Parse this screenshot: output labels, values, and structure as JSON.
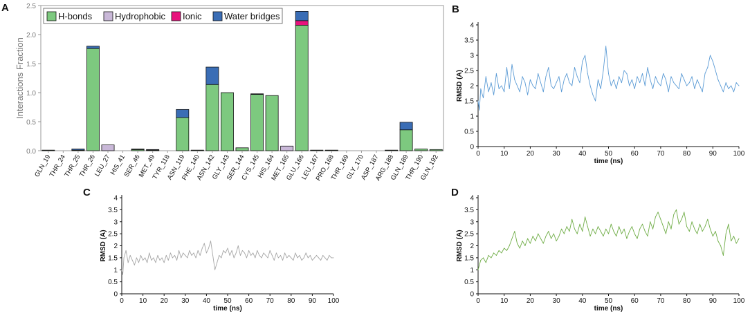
{
  "panels": {
    "A": {
      "letter": "A"
    },
    "B": {
      "letter": "B"
    },
    "C": {
      "letter": "C"
    },
    "D": {
      "letter": "D"
    }
  },
  "colors": {
    "hbonds": "#7dc97f",
    "hydrophobic": "#c9b8d8",
    "ionic": "#e8127d",
    "water": "#3a6db5",
    "rmsd_b": "#5b9bd5",
    "rmsd_c": "#a6a6a6",
    "rmsd_d": "#70ad47"
  },
  "chart_data": [
    {
      "panel": "A",
      "type": "bar",
      "stacked": true,
      "title": "",
      "xlabel": "",
      "ylabel": "Interactions Fraction",
      "ylim": [
        0,
        2.5
      ],
      "yticks": [
        "0.0",
        "0.5",
        "1.0",
        "1.5",
        "2.0",
        "2.5"
      ],
      "yticks_values": [
        0,
        0.5,
        1.0,
        1.5,
        2.0,
        2.5
      ],
      "legend_position": "top-left",
      "categories": [
        "GLN_19",
        "THR_24",
        "THR_25",
        "THR_26",
        "LEU_27",
        "HIS_41",
        "SER_46",
        "MET_49",
        "TYR_118",
        "ASN_119",
        "PHE_140",
        "ASN_142",
        "GLY_143",
        "SER_144",
        "CYS_145",
        "HIS_164",
        "MET_165",
        "GLU_166",
        "LEU_167",
        "PRO_168",
        "THR_169",
        "GLY_170",
        "ASP_187",
        "ARG_188",
        "GLN_189",
        "THR_190",
        "GLN_192"
      ],
      "series": [
        {
          "name": "H-bonds",
          "key": "hbonds",
          "values": [
            0.01,
            0.0,
            0.01,
            1.76,
            0.0,
            0.0,
            0.02,
            0.01,
            0.0,
            0.57,
            0.01,
            1.14,
            1.0,
            0.05,
            0.97,
            0.95,
            0.0,
            2.16,
            0.01,
            0.01,
            0.0,
            0.0,
            0.0,
            0.01,
            0.36,
            0.03,
            0.02
          ]
        },
        {
          "name": "Hydrophobic",
          "key": "hydrophobic",
          "values": [
            0.0,
            0.0,
            0.0,
            0.0,
            0.1,
            0.0,
            0.0,
            0.0,
            0.0,
            0.0,
            0.0,
            0.0,
            0.0,
            0.0,
            0.0,
            0.0,
            0.08,
            0.0,
            0.0,
            0.0,
            0.0,
            0.0,
            0.0,
            0.0,
            0.0,
            0.0,
            0.0
          ]
        },
        {
          "name": "Ionic",
          "key": "ionic",
          "values": [
            0.0,
            0.0,
            0.0,
            0.0,
            0.0,
            0.0,
            0.0,
            0.0,
            0.0,
            0.0,
            0.0,
            0.0,
            0.0,
            0.0,
            0.0,
            0.0,
            0.0,
            0.08,
            0.0,
            0.0,
            0.0,
            0.0,
            0.0,
            0.0,
            0.0,
            0.0,
            0.0
          ]
        },
        {
          "name": "Water bridges",
          "key": "water",
          "values": [
            0.0,
            0.0,
            0.02,
            0.04,
            0.0,
            0.0,
            0.01,
            0.01,
            0.0,
            0.14,
            0.0,
            0.3,
            0.0,
            0.0,
            0.01,
            0.0,
            0.0,
            0.16,
            0.0,
            0.0,
            0.0,
            0.0,
            0.0,
            0.0,
            0.13,
            0.0,
            0.0
          ]
        }
      ]
    },
    {
      "panel": "B",
      "type": "line",
      "xlabel": "time (ns)",
      "ylabel": "RMSD (A)",
      "xlim": [
        0,
        100
      ],
      "ylim": [
        0,
        4
      ],
      "xticks": [
        "0",
        "10",
        "20",
        "30",
        "40",
        "50",
        "60",
        "70",
        "80",
        "90",
        "100"
      ],
      "xticks_values": [
        0,
        10,
        20,
        30,
        40,
        50,
        60,
        70,
        80,
        90,
        100
      ],
      "yticks": [
        "0",
        "0.5",
        "1",
        "1.5",
        "2",
        "2.5",
        "3",
        "3.5",
        "4"
      ],
      "yticks_values": [
        0,
        0.5,
        1,
        1.5,
        2,
        2.5,
        3,
        3.5,
        4
      ],
      "series": [
        {
          "name": "RMSD",
          "color_key": "rmsd_b",
          "x": [
            0,
            0.5,
            1,
            2,
            3,
            4,
            5,
            6,
            7,
            8,
            9,
            10,
            11,
            12,
            13,
            14,
            15,
            16,
            17,
            18,
            19,
            20,
            21,
            22,
            23,
            24,
            25,
            26,
            27,
            28,
            29,
            30,
            31,
            32,
            33,
            34,
            35,
            36,
            37,
            38,
            39,
            40,
            41,
            42,
            43,
            44,
            45,
            46,
            47,
            48,
            49,
            50,
            51,
            52,
            53,
            54,
            55,
            56,
            57,
            58,
            59,
            60,
            61,
            62,
            63,
            64,
            65,
            66,
            67,
            68,
            69,
            70,
            71,
            72,
            73,
            74,
            75,
            76,
            77,
            78,
            79,
            80,
            81,
            82,
            83,
            84,
            85,
            86,
            87,
            88,
            89,
            90,
            91,
            92,
            93,
            94,
            95,
            96,
            97,
            98,
            99,
            100
          ],
          "y": [
            1.5,
            1.2,
            1.9,
            1.6,
            2.3,
            1.8,
            2.1,
            1.7,
            2.4,
            1.9,
            2.0,
            1.8,
            2.6,
            1.9,
            2.7,
            2.2,
            2.0,
            1.8,
            2.3,
            2.1,
            1.7,
            2.2,
            2.0,
            1.9,
            2.4,
            2.1,
            1.8,
            2.3,
            2.6,
            2.0,
            1.9,
            2.1,
            2.3,
            1.8,
            2.2,
            2.4,
            2.1,
            2.0,
            2.6,
            2.3,
            2.1,
            2.8,
            3.0,
            2.4,
            2.0,
            1.7,
            1.5,
            2.2,
            1.9,
            2.5,
            3.3,
            2.4,
            2.0,
            2.2,
            1.9,
            2.3,
            2.1,
            2.5,
            2.4,
            2.0,
            2.2,
            1.9,
            2.3,
            2.1,
            2.4,
            2.0,
            2.6,
            2.2,
            1.9,
            2.3,
            2.1,
            2.0,
            2.4,
            2.2,
            1.8,
            2.3,
            2.1,
            2.0,
            1.9,
            2.4,
            2.2,
            2.0,
            2.1,
            2.3,
            1.9,
            2.2,
            2.0,
            1.8,
            2.4,
            2.6,
            3.0,
            2.8,
            2.5,
            2.2,
            2.0,
            1.8,
            2.1,
            1.9,
            2.0,
            1.8,
            2.1,
            2.0
          ]
        }
      ]
    },
    {
      "panel": "C",
      "type": "line",
      "xlabel": "time (ns)",
      "ylabel": "RMSD (A)",
      "xlim": [
        0,
        100
      ],
      "ylim": [
        0,
        4
      ],
      "xticks": [
        "0",
        "10",
        "20",
        "30",
        "40",
        "50",
        "60",
        "70",
        "80",
        "90",
        "100"
      ],
      "xticks_values": [
        0,
        10,
        20,
        30,
        40,
        50,
        60,
        70,
        80,
        90,
        100
      ],
      "yticks": [
        "0",
        "0.5",
        "1",
        "1.5",
        "2",
        "2.5",
        "3",
        "3.5",
        "4"
      ],
      "yticks_values": [
        0,
        0.5,
        1,
        1.5,
        2,
        2.5,
        3,
        3.5,
        4
      ],
      "series": [
        {
          "name": "RMSD",
          "color_key": "rmsd_c",
          "x": [
            0,
            0.5,
            1,
            2,
            3,
            4,
            5,
            6,
            7,
            8,
            9,
            10,
            11,
            12,
            13,
            14,
            15,
            16,
            17,
            18,
            19,
            20,
            21,
            22,
            23,
            24,
            25,
            26,
            27,
            28,
            29,
            30,
            31,
            32,
            33,
            34,
            35,
            36,
            37,
            38,
            39,
            40,
            41,
            42,
            43,
            44,
            45,
            46,
            47,
            48,
            49,
            50,
            51,
            52,
            53,
            54,
            55,
            56,
            57,
            58,
            59,
            60,
            61,
            62,
            63,
            64,
            65,
            66,
            67,
            68,
            69,
            70,
            71,
            72,
            73,
            74,
            75,
            76,
            77,
            78,
            79,
            80,
            81,
            82,
            83,
            84,
            85,
            86,
            87,
            88,
            89,
            90,
            91,
            92,
            93,
            94,
            95,
            96,
            97,
            98,
            99,
            100
          ],
          "y": [
            1.0,
            0.8,
            1.5,
            1.8,
            1.3,
            1.6,
            1.4,
            1.2,
            1.5,
            1.3,
            1.6,
            1.4,
            1.5,
            1.3,
            1.7,
            1.4,
            1.5,
            1.3,
            1.6,
            1.4,
            1.5,
            1.3,
            1.6,
            1.4,
            1.7,
            1.5,
            1.6,
            1.4,
            1.8,
            1.5,
            1.7,
            1.6,
            1.5,
            1.8,
            1.6,
            1.7,
            1.5,
            1.8,
            1.6,
            1.9,
            2.1,
            1.7,
            1.9,
            2.2,
            1.6,
            1.0,
            1.3,
            1.6,
            1.5,
            1.8,
            1.7,
            1.9,
            1.6,
            1.8,
            1.5,
            1.7,
            2.0,
            1.6,
            1.8,
            1.7,
            1.5,
            1.8,
            1.6,
            1.7,
            1.5,
            1.8,
            1.6,
            1.5,
            1.7,
            1.6,
            1.5,
            1.8,
            1.6,
            1.4,
            1.7,
            1.5,
            1.6,
            1.4,
            1.7,
            1.5,
            1.6,
            1.5,
            1.4,
            1.7,
            1.5,
            1.6,
            1.4,
            1.5,
            1.7,
            1.5,
            1.6,
            1.4,
            1.5,
            1.6,
            1.5,
            1.4,
            1.6,
            1.5,
            1.4,
            1.6,
            1.5,
            1.5
          ]
        }
      ]
    },
    {
      "panel": "D",
      "type": "line",
      "xlabel": "time (ns)",
      "ylabel": "RMSD (A)",
      "xlim": [
        0,
        100
      ],
      "ylim": [
        0,
        4
      ],
      "xticks": [
        "0",
        "10",
        "20",
        "30",
        "40",
        "50",
        "60",
        "70",
        "80",
        "90",
        "100"
      ],
      "xticks_values": [
        0,
        10,
        20,
        30,
        40,
        50,
        60,
        70,
        80,
        90,
        100
      ],
      "yticks": [
        "0",
        "0.5",
        "1",
        "1.5",
        "2",
        "2.5",
        "3",
        "3.5",
        "4"
      ],
      "yticks_values": [
        0,
        0.5,
        1,
        1.5,
        2,
        2.5,
        3,
        3.5,
        4
      ],
      "series": [
        {
          "name": "RMSD",
          "color_key": "rmsd_d",
          "x": [
            0,
            0.5,
            1,
            2,
            3,
            4,
            5,
            6,
            7,
            8,
            9,
            10,
            11,
            12,
            13,
            14,
            15,
            16,
            17,
            18,
            19,
            20,
            21,
            22,
            23,
            24,
            25,
            26,
            27,
            28,
            29,
            30,
            31,
            32,
            33,
            34,
            35,
            36,
            37,
            38,
            39,
            40,
            41,
            42,
            43,
            44,
            45,
            46,
            47,
            48,
            49,
            50,
            51,
            52,
            53,
            54,
            55,
            56,
            57,
            58,
            59,
            60,
            61,
            62,
            63,
            64,
            65,
            66,
            67,
            68,
            69,
            70,
            71,
            72,
            73,
            74,
            75,
            76,
            77,
            78,
            79,
            80,
            81,
            82,
            83,
            84,
            85,
            86,
            87,
            88,
            89,
            90,
            91,
            92,
            93,
            94,
            95,
            96,
            97,
            98,
            99,
            100
          ],
          "y": [
            1.0,
            1.2,
            1.4,
            1.5,
            1.3,
            1.6,
            1.5,
            1.7,
            1.6,
            1.8,
            1.7,
            1.9,
            1.8,
            2.0,
            2.3,
            2.6,
            2.1,
            1.9,
            2.2,
            2.0,
            2.3,
            2.1,
            2.4,
            2.2,
            2.5,
            2.3,
            2.1,
            2.4,
            2.6,
            2.3,
            2.5,
            2.2,
            2.4,
            2.7,
            2.5,
            2.8,
            2.6,
            3.1,
            2.7,
            2.5,
            2.9,
            2.6,
            3.2,
            2.8,
            2.4,
            2.7,
            2.5,
            2.8,
            2.6,
            2.4,
            2.7,
            2.5,
            2.9,
            2.6,
            2.4,
            2.8,
            2.5,
            2.7,
            2.3,
            2.6,
            2.8,
            2.5,
            2.3,
            2.7,
            2.9,
            2.6,
            2.4,
            3.0,
            2.7,
            3.2,
            3.4,
            3.1,
            2.8,
            2.5,
            3.0,
            2.7,
            3.3,
            3.5,
            2.9,
            3.1,
            3.4,
            2.8,
            2.6,
            3.0,
            2.7,
            2.5,
            2.9,
            2.6,
            2.8,
            3.1,
            2.7,
            2.4,
            2.6,
            2.2,
            2.0,
            1.6,
            2.5,
            2.9,
            2.2,
            2.4,
            2.1,
            2.3
          ]
        }
      ]
    }
  ]
}
